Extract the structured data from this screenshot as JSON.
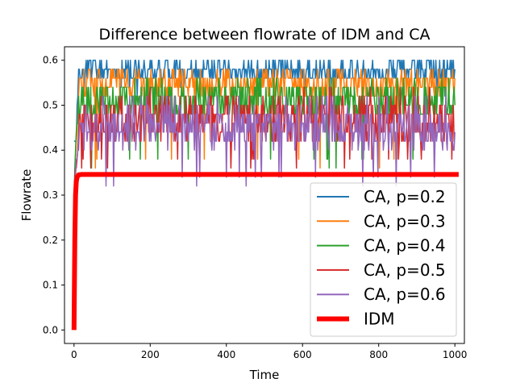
{
  "chart_data": {
    "type": "line",
    "title": "Difference between flowrate of IDM and CA",
    "xlabel": "Time",
    "ylabel": "Flowrate",
    "xlim": [
      -25,
      1025
    ],
    "ylim": [
      -0.03,
      0.63
    ],
    "xticks": [
      0,
      200,
      400,
      600,
      800,
      1000
    ],
    "yticks": [
      0.0,
      0.1,
      0.2,
      0.3,
      0.4,
      0.5,
      0.6
    ],
    "xtick_labels": [
      "0",
      "200",
      "400",
      "600",
      "800",
      "1000"
    ],
    "ytick_labels": [
      "0.0",
      "0.1",
      "0.2",
      "0.3",
      "0.4",
      "0.5",
      "0.6"
    ],
    "grid": false,
    "legend_position": "lower-right",
    "series": [
      {
        "name": "CA, p=0.2",
        "color": "#1f77b4",
        "kind": "noisy",
        "t_start": 0,
        "t_end": 1000,
        "start": 0.28,
        "ramp_end": 12,
        "mean": 0.575,
        "min": 0.52,
        "max": 0.6,
        "spread": 0.025,
        "seed": 11
      },
      {
        "name": "CA, p=0.3",
        "color": "#ff7f0e",
        "kind": "noisy",
        "t_start": 0,
        "t_end": 1000,
        "start": 0.3,
        "ramp_end": 12,
        "mean": 0.545,
        "min": 0.36,
        "max": 0.58,
        "spread": 0.03,
        "seed": 23
      },
      {
        "name": "CA, p=0.4",
        "color": "#2ca02c",
        "kind": "noisy",
        "t_start": 0,
        "t_end": 1000,
        "start": 0.3,
        "ramp_end": 12,
        "mean": 0.51,
        "min": 0.36,
        "max": 0.56,
        "spread": 0.04,
        "seed": 37
      },
      {
        "name": "CA, p=0.5",
        "color": "#d62728",
        "kind": "noisy",
        "t_start": 0,
        "t_end": 1000,
        "start": 0.3,
        "ramp_end": 14,
        "mean": 0.47,
        "min": 0.36,
        "max": 0.54,
        "spread": 0.05,
        "seed": 51
      },
      {
        "name": "CA, p=0.6",
        "color": "#9467bd",
        "kind": "noisy",
        "t_start": 0,
        "t_end": 1000,
        "start": 0.3,
        "ramp_end": 16,
        "mean": 0.45,
        "min": 0.32,
        "max": 0.52,
        "spread": 0.045,
        "seed": 67
      },
      {
        "name": "IDM",
        "color": "#ff0000",
        "kind": "smooth",
        "x": [
          0,
          2,
          4,
          6,
          8,
          12,
          20,
          40,
          100,
          1010
        ],
        "y": [
          0.0,
          0.2,
          0.3,
          0.33,
          0.34,
          0.345,
          0.346,
          0.346,
          0.346,
          0.346
        ]
      }
    ]
  }
}
